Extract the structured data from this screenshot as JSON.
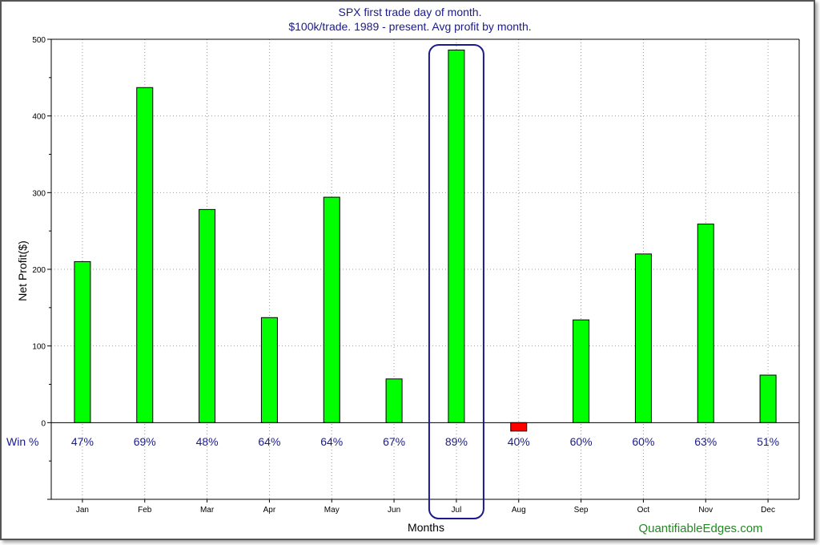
{
  "chart_data": {
    "type": "bar",
    "title": "SPX first trade day of month.",
    "subtitle": "$100k/trade. 1989 - present. Avg profit by month.",
    "xlabel": "Months",
    "ylabel": "Net Profit($)",
    "ylim": [
      -100,
      500
    ],
    "yticks": [
      0,
      100,
      200,
      300,
      400,
      500
    ],
    "grid": true,
    "categories": [
      "Jan",
      "Feb",
      "Mar",
      "Apr",
      "May",
      "Jun",
      "Jul",
      "Aug",
      "Sep",
      "Oct",
      "Nov",
      "Dec"
    ],
    "values": [
      210,
      437,
      278,
      137,
      294,
      57,
      486,
      -11,
      134,
      220,
      259,
      62
    ],
    "win_label": "Win %",
    "win_rates": [
      "47%",
      "69%",
      "48%",
      "64%",
      "64%",
      "67%",
      "89%",
      "40%",
      "60%",
      "60%",
      "63%",
      "51%"
    ],
    "highlight_category": "Jul",
    "colors": {
      "positive": "#00ff00",
      "negative": "#ff0000",
      "text": "#1a1a8c",
      "highlight": "#1a1a8c"
    }
  },
  "watermark": "QuantifiableEdges.com"
}
